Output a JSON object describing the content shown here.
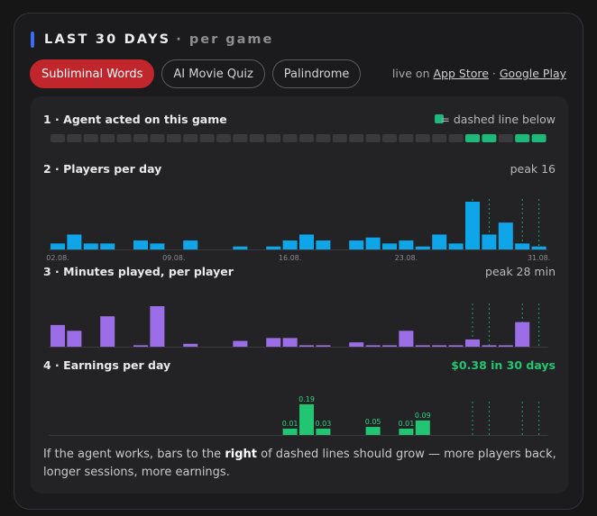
{
  "header": {
    "title": "LAST 30 DAYS",
    "subtitle": "· per game"
  },
  "tabs": [
    {
      "label": "Subliminal Words",
      "active": true
    },
    {
      "label": "AI Movie Quiz",
      "active": false
    },
    {
      "label": "Palindrome",
      "active": false
    }
  ],
  "links": {
    "prefix": "live on",
    "app_store": "App Store",
    "separator": "·",
    "google_play": "Google Play"
  },
  "colors": {
    "accent": "#3b6cf6",
    "active_tab": "#c0262b",
    "agent": "#1db87a",
    "idle": "#3a3a3d",
    "players": "#0ea5e9",
    "minutes": "#9b6ee8",
    "earnings": "#22c572"
  },
  "agent_section": {
    "title": "1 · Agent acted on this game",
    "legend": "= dashed line below",
    "days": [
      0,
      0,
      0,
      0,
      0,
      0,
      0,
      0,
      0,
      0,
      0,
      0,
      0,
      0,
      0,
      0,
      0,
      0,
      0,
      0,
      0,
      0,
      0,
      0,
      0,
      1,
      1,
      0,
      1,
      1
    ]
  },
  "footer": {
    "before": "If the agent works, bars to the",
    "bold": "right",
    "after": "of dashed lines should grow — more players back, longer sessions, more earnings."
  },
  "chart_data": [
    {
      "type": "bar",
      "title": "2 · Players per day",
      "summary": "peak 16",
      "x_tick_labels": [
        "02.08.",
        "09.08.",
        "16.08.",
        "23.08.",
        "31.08."
      ],
      "x_tick_index": [
        0,
        7,
        14,
        21,
        29
      ],
      "values": [
        2,
        5,
        2,
        2,
        0,
        3,
        2,
        0,
        3,
        0,
        0,
        1,
        0,
        1,
        3,
        5,
        3,
        0,
        3,
        4,
        2,
        3,
        1,
        5,
        2,
        16,
        5,
        9,
        2,
        1
      ],
      "agent_days": [
        25,
        26,
        28,
        29
      ],
      "ylim": [
        0,
        16
      ]
    },
    {
      "type": "bar",
      "title": "3 · Minutes played, per player",
      "summary": "peak 28 min",
      "values": [
        15,
        11,
        0,
        21,
        0,
        1,
        28,
        0,
        2,
        0,
        0,
        4,
        0,
        6,
        6,
        1,
        1,
        0,
        3,
        1,
        1,
        11,
        1,
        1,
        1,
        5,
        1,
        1,
        17,
        0
      ],
      "agent_days": [
        25,
        26,
        28,
        29
      ],
      "ylim": [
        0,
        28
      ]
    },
    {
      "type": "bar",
      "title": "4 · Earnings per day",
      "summary": "$0.38 in 30 days",
      "values": [
        0,
        0,
        0,
        0,
        0,
        0,
        0,
        0,
        0,
        0,
        0,
        0,
        0,
        0,
        0.01,
        0.19,
        0.03,
        0,
        0,
        0.05,
        0,
        0.01,
        0.09,
        0,
        0,
        0,
        0,
        0,
        0,
        0
      ],
      "data_labels": [
        "",
        "",
        "",
        "",
        "",
        "",
        "",
        "",
        "",
        "",
        "",
        "",
        "",
        "",
        "0.01",
        "0.19",
        "0.03",
        "",
        "",
        "0.05",
        "",
        "0.01",
        "0.09",
        "",
        "",
        "",
        "",
        "",
        "",
        ""
      ],
      "agent_days": [
        25,
        26,
        28,
        29
      ],
      "ylim": [
        0,
        0.19
      ]
    }
  ]
}
